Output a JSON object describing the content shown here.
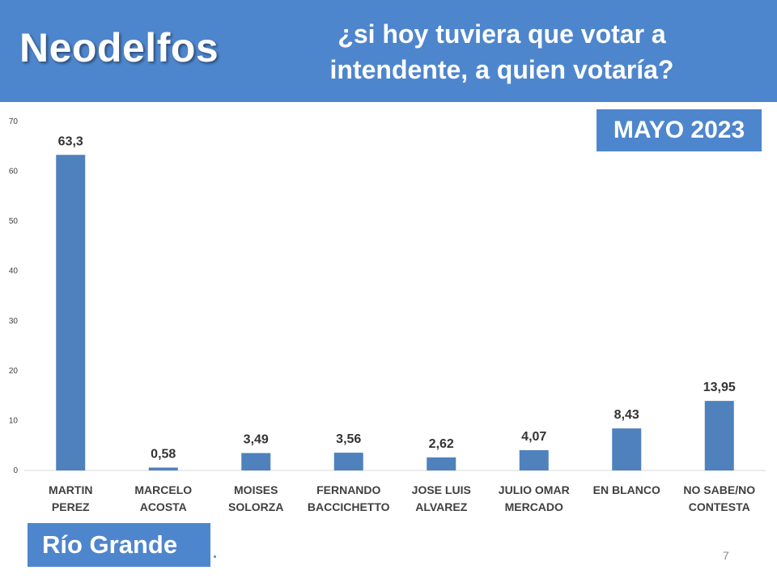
{
  "header": {
    "brand": "Neodelfos",
    "question_line1": "¿si hoy tuviera que votar a",
    "question_line2": "intendente, a quien votaría?"
  },
  "badges": {
    "month": "MAYO 2023",
    "city": "Río Grande"
  },
  "footer": {
    "page_number": "7"
  },
  "colors": {
    "accent": "#4e86cd",
    "bar": "#4f81bd"
  },
  "chart_data": {
    "type": "bar",
    "title": "¿si hoy tuviera que votar a intendente, a quien votaría?",
    "xlabel": "",
    "ylabel": "",
    "ylim": [
      0,
      70
    ],
    "yticks": [
      0,
      10,
      20,
      30,
      40,
      50,
      60,
      70
    ],
    "grid": false,
    "categories": [
      [
        "MARTIN",
        "PEREZ"
      ],
      [
        "MARCELO",
        "ACOSTA"
      ],
      [
        "MOISES",
        "SOLORZA"
      ],
      [
        "FERNANDO",
        "BACCICHETTO"
      ],
      [
        "JOSE LUIS",
        "ALVAREZ"
      ],
      [
        "JULIO OMAR",
        "MERCADO"
      ],
      [
        "EN BLANCO"
      ],
      [
        "NO SABE/NO",
        "CONTESTA"
      ]
    ],
    "values": [
      63.3,
      0.58,
      3.49,
      3.56,
      2.62,
      4.07,
      8.43,
      13.95
    ],
    "value_labels": [
      "63,3",
      "0,58",
      "3,49",
      "3,56",
      "2,62",
      "4,07",
      "8,43",
      "13,95"
    ]
  }
}
